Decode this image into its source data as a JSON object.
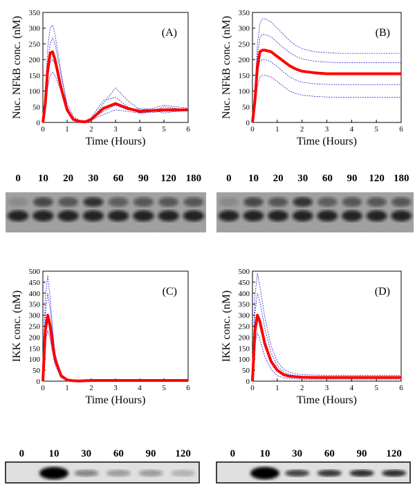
{
  "chart_data": [
    {
      "type": "line",
      "label": "(A)",
      "y_label": "Nuc. NFkB conc. (nM)",
      "x_label": "Time (Hours)",
      "x": [
        0,
        0.1,
        0.2,
        0.3,
        0.4,
        0.5,
        0.75,
        1,
        1.25,
        1.5,
        1.75,
        2,
        2.5,
        3,
        3.5,
        4,
        4.5,
        5,
        5.5,
        6
      ],
      "xlim": [
        0,
        6
      ],
      "xticks": [
        0,
        1,
        2,
        3,
        4,
        5,
        6
      ],
      "ylim": [
        0,
        350
      ],
      "yticks": [
        0,
        50,
        100,
        150,
        200,
        250,
        300,
        350
      ],
      "series": [
        {
          "color": "#2020d0",
          "values": [
            0,
            90,
            240,
            300,
            310,
            280,
            160,
            50,
            10,
            2,
            1,
            5,
            60,
            110,
            70,
            40,
            45,
            55,
            50,
            45
          ]
        },
        {
          "color": "#2020d0",
          "values": [
            0,
            40,
            110,
            150,
            160,
            150,
            100,
            45,
            15,
            5,
            3,
            8,
            25,
            40,
            35,
            30,
            32,
            35,
            36,
            36
          ]
        },
        {
          "color": "#2020d0",
          "values": [
            0,
            70,
            190,
            250,
            270,
            250,
            150,
            60,
            20,
            8,
            5,
            15,
            70,
            80,
            50,
            30,
            35,
            50,
            45,
            40
          ]
        },
        {
          "color": "#2020d0",
          "values": [
            0,
            55,
            140,
            190,
            200,
            185,
            120,
            50,
            12,
            4,
            3,
            12,
            35,
            55,
            40,
            45,
            40,
            30,
            35,
            38
          ]
        },
        {
          "color": "#ff0000",
          "values": [
            0,
            60,
            170,
            220,
            225,
            200,
            110,
            40,
            10,
            3,
            2,
            10,
            45,
            60,
            45,
            35,
            38,
            40,
            40,
            40
          ]
        }
      ]
    },
    {
      "type": "line",
      "label": "(B)",
      "y_label": "Nuc. NFkB conc. (nM)",
      "x_label": "Time (Hours)",
      "x": [
        0,
        0.1,
        0.2,
        0.3,
        0.4,
        0.5,
        0.75,
        1,
        1.25,
        1.5,
        1.75,
        2,
        2.5,
        3,
        3.5,
        4,
        4.5,
        5,
        5.5,
        6
      ],
      "xlim": [
        0,
        6
      ],
      "xticks": [
        0,
        1,
        2,
        3,
        4,
        5,
        6
      ],
      "ylim": [
        0,
        350
      ],
      "yticks": [
        0,
        50,
        100,
        150,
        200,
        250,
        300,
        350
      ],
      "series": [
        {
          "color": "#2020d0",
          "values": [
            0,
            100,
            250,
            315,
            330,
            330,
            320,
            300,
            280,
            260,
            245,
            235,
            225,
            222,
            220,
            220,
            220,
            220,
            220,
            220
          ]
        },
        {
          "color": "#2020d0",
          "values": [
            0,
            45,
            115,
            145,
            150,
            150,
            145,
            130,
            115,
            100,
            92,
            87,
            83,
            81,
            80,
            80,
            80,
            80,
            80,
            80
          ]
        },
        {
          "color": "#2020d0",
          "values": [
            0,
            85,
            215,
            270,
            280,
            280,
            272,
            255,
            238,
            222,
            210,
            202,
            195,
            192,
            190,
            190,
            190,
            190,
            190,
            190
          ]
        },
        {
          "color": "#2020d0",
          "values": [
            0,
            60,
            155,
            195,
            200,
            200,
            193,
            178,
            160,
            145,
            135,
            128,
            123,
            121,
            120,
            120,
            120,
            120,
            120,
            120
          ]
        },
        {
          "color": "#ff0000",
          "values": [
            0,
            70,
            180,
            225,
            230,
            230,
            225,
            210,
            195,
            180,
            170,
            163,
            158,
            155,
            155,
            155,
            155,
            155,
            155,
            155
          ]
        }
      ]
    },
    {
      "type": "line",
      "label": "(C)",
      "y_label": "IKK conc. (nM)",
      "x_label": "Time (Hours)",
      "x": [
        0,
        0.1,
        0.2,
        0.3,
        0.4,
        0.5,
        0.75,
        1,
        1.25,
        1.5,
        1.75,
        2,
        2.5,
        3,
        3.5,
        4,
        4.5,
        5,
        5.5,
        6
      ],
      "xlim": [
        0,
        6
      ],
      "xticks": [
        0,
        1,
        2,
        3,
        4,
        5,
        6
      ],
      "ylim": [
        0,
        500
      ],
      "yticks": [
        0,
        50,
        100,
        150,
        200,
        250,
        300,
        350,
        400,
        450,
        500
      ],
      "series": [
        {
          "color": "#2020d0",
          "values": [
            0,
            380,
            480,
            380,
            240,
            130,
            25,
            5,
            3,
            2,
            2,
            3,
            3,
            3,
            3,
            3,
            3,
            3,
            3,
            3
          ]
        },
        {
          "color": "#2020d0",
          "values": [
            0,
            180,
            230,
            190,
            130,
            75,
            15,
            4,
            2,
            2,
            2,
            2,
            2,
            2,
            2,
            2,
            2,
            2,
            2,
            2
          ]
        },
        {
          "color": "#2020d0",
          "values": [
            0,
            300,
            400,
            330,
            220,
            120,
            22,
            5,
            3,
            3,
            3,
            3,
            3,
            3,
            3,
            3,
            3,
            3,
            3,
            3
          ]
        },
        {
          "color": "#ff0000",
          "values": [
            0,
            230,
            300,
            250,
            170,
            100,
            25,
            5,
            2,
            1,
            2,
            3,
            3,
            3,
            3,
            3,
            3,
            3,
            3,
            3
          ]
        }
      ]
    },
    {
      "type": "line",
      "label": "(D)",
      "y_label": "IKK conc. (nM)",
      "x_label": "Time (Hours)",
      "x": [
        0,
        0.1,
        0.2,
        0.3,
        0.4,
        0.5,
        0.75,
        1,
        1.25,
        1.5,
        1.75,
        2,
        2.5,
        3,
        3.5,
        4,
        4.5,
        5,
        5.5,
        6
      ],
      "xlim": [
        0,
        6
      ],
      "xticks": [
        0,
        1,
        2,
        3,
        4,
        5,
        6
      ],
      "ylim": [
        0,
        500
      ],
      "yticks": [
        0,
        50,
        100,
        150,
        200,
        250,
        300,
        350,
        400,
        450,
        500
      ],
      "series": [
        {
          "color": "#2020d0",
          "values": [
            0,
            390,
            490,
            430,
            360,
            290,
            160,
            90,
            55,
            40,
            33,
            30,
            28,
            27,
            27,
            27,
            27,
            27,
            27,
            27
          ]
        },
        {
          "color": "#2020d0",
          "values": [
            0,
            170,
            220,
            190,
            150,
            110,
            55,
            25,
            15,
            11,
            10,
            9,
            9,
            9,
            9,
            9,
            9,
            9,
            9,
            9
          ]
        },
        {
          "color": "#2020d0",
          "values": [
            0,
            310,
            400,
            360,
            300,
            240,
            130,
            70,
            42,
            30,
            25,
            22,
            21,
            20,
            20,
            20,
            20,
            20,
            20,
            20
          ]
        },
        {
          "color": "#ff0000",
          "values": [
            0,
            230,
            300,
            270,
            220,
            170,
            90,
            50,
            30,
            22,
            20,
            18,
            17,
            17,
            17,
            17,
            17,
            17,
            17,
            17
          ]
        }
      ]
    }
  ],
  "gels": [
    {
      "lanes": [
        "0",
        "10",
        "20",
        "30",
        "60",
        "90",
        "120",
        "180"
      ]
    },
    {
      "lanes": [
        "0",
        "10",
        "20",
        "30",
        "60",
        "90",
        "120",
        "180"
      ]
    },
    {
      "lanes": [
        "0",
        "10",
        "30",
        "60",
        "90",
        "120"
      ]
    },
    {
      "lanes": [
        "0",
        "10",
        "30",
        "60",
        "90",
        "120"
      ]
    }
  ]
}
